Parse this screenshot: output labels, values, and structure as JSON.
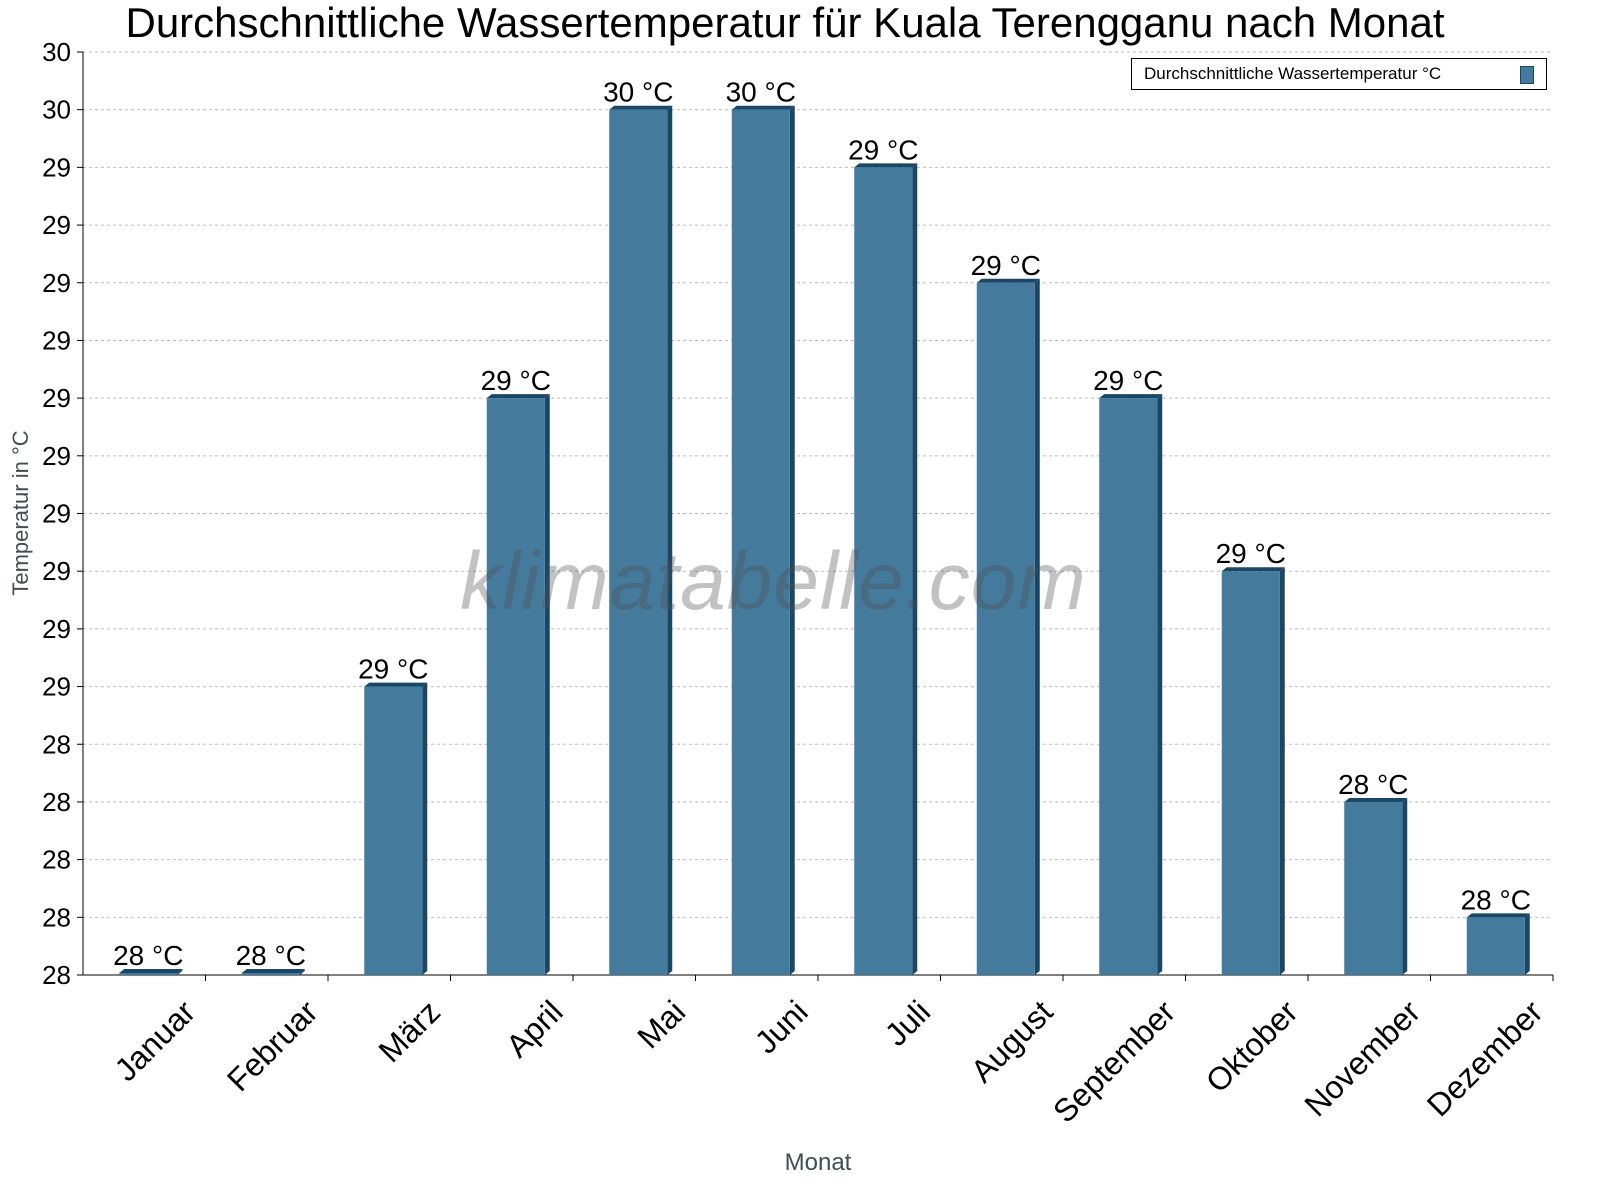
{
  "chart_data": {
    "type": "bar",
    "title": "Durchschnittliche Wassertemperatur für Kuala Terengganu nach Monat",
    "xlabel": "Monat",
    "ylabel": "Temperatur in °C",
    "categories": [
      "Januar",
      "Februar",
      "März",
      "April",
      "Mai",
      "Juni",
      "Juli",
      "August",
      "September",
      "Oktober",
      "November",
      "Dezember"
    ],
    "series": [
      {
        "name": "Durchschnittliche Wassertemperatur °C",
        "values": [
          28.0,
          28.0,
          28.5,
          29.0,
          29.5,
          29.5,
          29.4,
          29.2,
          29.0,
          28.7,
          28.3,
          28.1
        ],
        "data_labels": [
          "28 °C",
          "28 °C",
          "29 °C",
          "29 °C",
          "30 °C",
          "30 °C",
          "29 °C",
          "29 °C",
          "29 °C",
          "29 °C",
          "28 °C",
          "28 °C"
        ]
      }
    ],
    "ylim": [
      28.0,
      29.6
    ],
    "yticks": [
      28.0,
      28.1,
      28.2,
      28.3,
      28.4,
      28.5,
      28.6,
      28.7,
      28.8,
      28.9,
      29.0,
      29.1,
      29.2,
      29.3,
      29.4,
      29.5,
      29.6
    ],
    "ytick_labels": [
      "28",
      "28",
      "28",
      "28",
      "28",
      "29",
      "29",
      "29",
      "29",
      "29",
      "29",
      "29",
      "29",
      "29",
      "29",
      "30",
      "30"
    ],
    "grid": true,
    "legend": "top-right",
    "colors": {
      "bar": "#447a9c",
      "bar_edge": "#1a4766"
    }
  },
  "watermark": "klimatabelle.com"
}
